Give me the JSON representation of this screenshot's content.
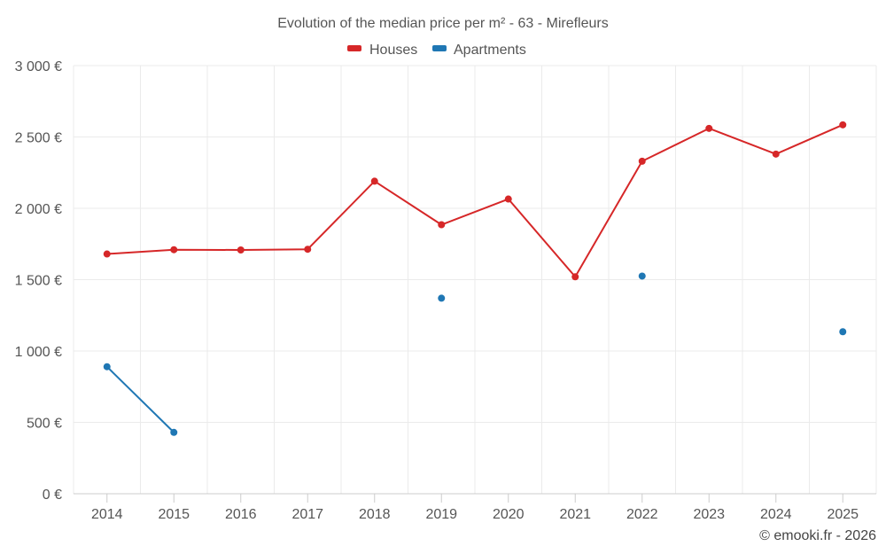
{
  "chart_data": {
    "type": "line",
    "title": "Evolution of the median price per m² - 63 - Mirefleurs",
    "xlabel": "",
    "ylabel": "",
    "categories": [
      "2014",
      "2015",
      "2016",
      "2017",
      "2018",
      "2019",
      "2020",
      "2021",
      "2022",
      "2023",
      "2024",
      "2025"
    ],
    "ylim": [
      0,
      3000
    ],
    "yticks": [
      0,
      500,
      1000,
      1500,
      2000,
      2500,
      3000
    ],
    "ytick_labels": [
      "0 €",
      "500 €",
      "1 000 €",
      "1 500 €",
      "2 000 €",
      "2 500 €",
      "3 000 €"
    ],
    "grid": true,
    "legend_position": "top-center",
    "series": [
      {
        "name": "Houses",
        "color": "#d62728",
        "values": [
          1680,
          1710,
          1708,
          1713,
          2190,
          1885,
          2065,
          1520,
          2330,
          2560,
          2380,
          2585
        ]
      },
      {
        "name": "Apartments",
        "color": "#1f77b4",
        "values": [
          890,
          430,
          null,
          null,
          null,
          1370,
          null,
          null,
          1525,
          null,
          null,
          1135
        ]
      }
    ]
  },
  "credit": "© emooki.fr - 2026"
}
